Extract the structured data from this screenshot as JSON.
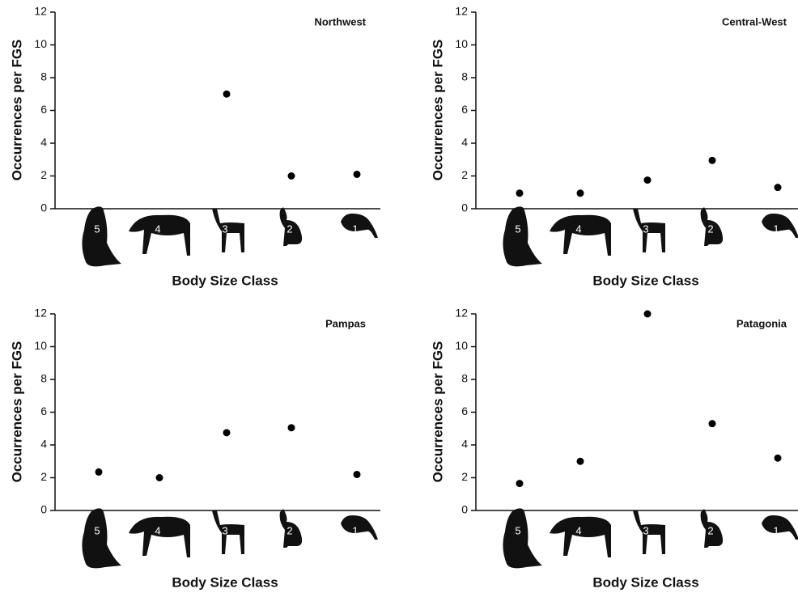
{
  "chart_data": [
    {
      "type": "scatter",
      "title": "Northwest",
      "xlabel": "Body Size Class",
      "ylabel": "Occurrences per FGS",
      "categories": [
        "5",
        "4",
        "3",
        "2",
        "1"
      ],
      "values": [
        null,
        null,
        7,
        2,
        2.1
      ],
      "color": "#000000",
      "ylim": [
        0,
        12
      ],
      "yticks": [
        0,
        2,
        4,
        6,
        8,
        10,
        12
      ],
      "grid": false
    },
    {
      "type": "scatter",
      "title": "Central-West",
      "xlabel": "Body Size Class",
      "ylabel": "Occurrences per FGS",
      "categories": [
        "5",
        "4",
        "3",
        "2",
        "1"
      ],
      "values": [
        0.95,
        0.95,
        1.75,
        2.95,
        1.3
      ],
      "color": "#000000",
      "ylim": [
        0,
        12
      ],
      "yticks": [
        0,
        2,
        4,
        6,
        8,
        10,
        12
      ],
      "grid": false
    },
    {
      "type": "scatter",
      "title": "Pampas",
      "xlabel": "Body Size Class",
      "ylabel": "Occurrences per FGS",
      "categories": [
        "5",
        "4",
        "3",
        "2",
        "1"
      ],
      "values": [
        2.35,
        2.0,
        4.75,
        5.05,
        2.2
      ],
      "color": "#000000",
      "ylim": [
        0,
        12
      ],
      "yticks": [
        0,
        2,
        4,
        6,
        8,
        10,
        12
      ],
      "grid": false
    },
    {
      "type": "scatter",
      "title": "Patagonia",
      "xlabel": "Body Size Class",
      "ylabel": "Occurrences per FGS",
      "categories": [
        "5",
        "4",
        "3",
        "2",
        "1"
      ],
      "values": [
        1.65,
        3.0,
        12,
        5.3,
        3.2
      ],
      "color": "#000000",
      "ylim": [
        0,
        12
      ],
      "yticks": [
        0,
        2,
        4,
        6,
        8,
        10,
        12
      ],
      "grid": false
    }
  ]
}
